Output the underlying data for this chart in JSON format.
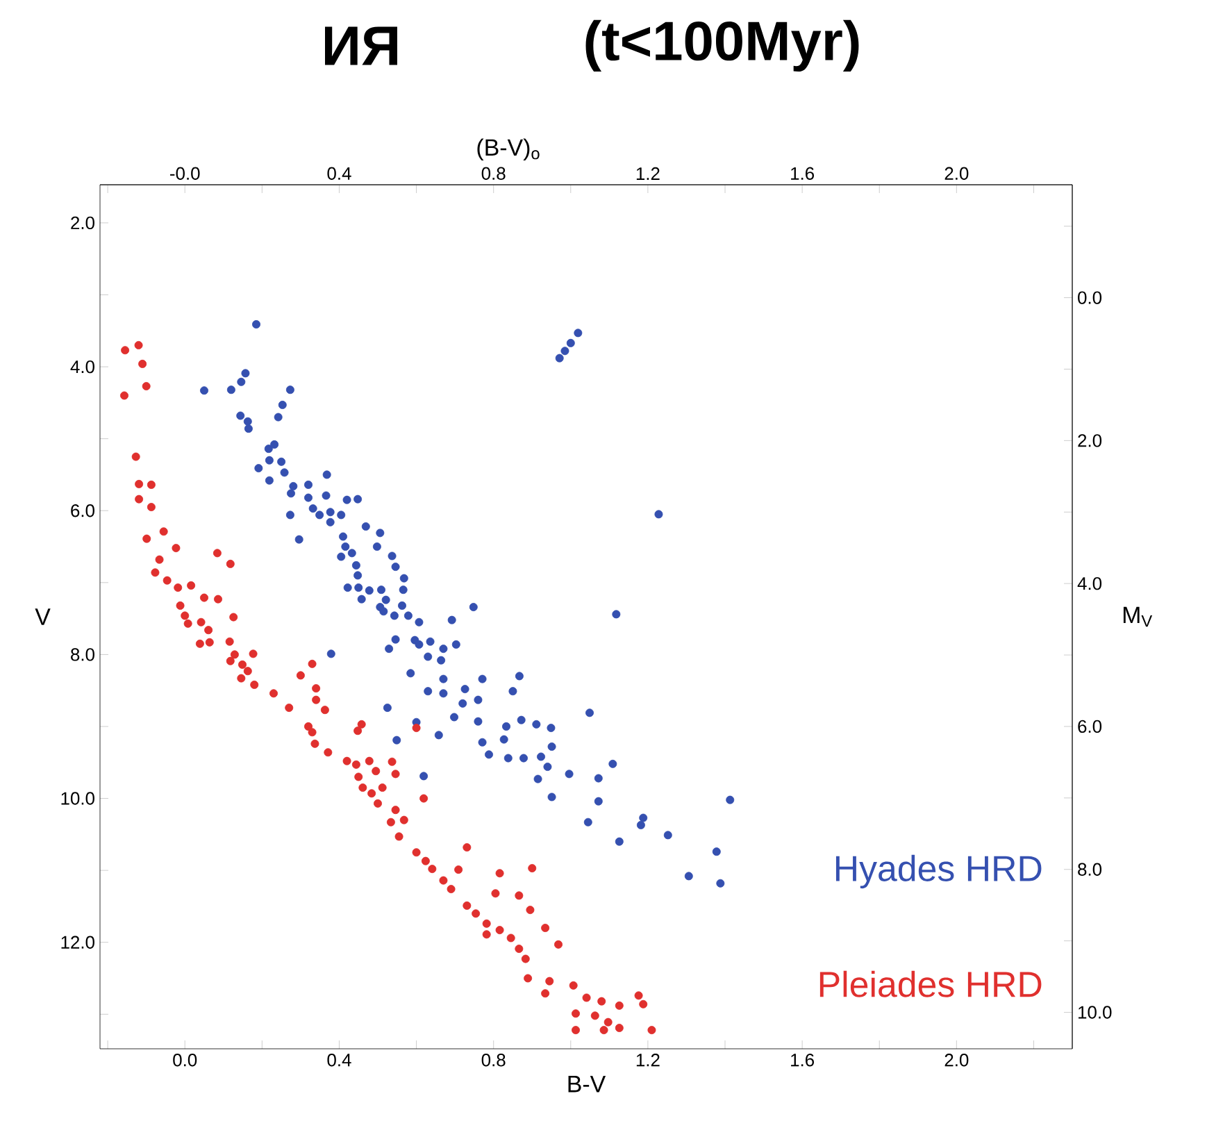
{
  "chart_data": {
    "type": "scatter",
    "title": "ИЯ",
    "subtitle": "(t<100Myr)",
    "xlabel": "B-V",
    "ylabel": "V",
    "x2label": "(B-V)$_{o}$",
    "y2label": "M$_{V}$",
    "marker": "circle",
    "xlim": [
      -0.22,
      2.3
    ],
    "ylim": [
      13.48,
      1.47
    ],
    "x2lim": [
      -0.22,
      2.3
    ],
    "y2lim": [
      10.51,
      -1.58
    ],
    "xticks": [
      {
        "value": -0.2,
        "label": null
      },
      {
        "value": 0,
        "label": "0.0"
      },
      {
        "value": 0.2,
        "label": null
      },
      {
        "value": 0.4,
        "label": "0.4"
      },
      {
        "value": 0.6,
        "label": null
      },
      {
        "value": 0.8,
        "label": "0.8"
      },
      {
        "value": 1.0,
        "label": null
      },
      {
        "value": 1.2,
        "label": "1.2"
      },
      {
        "value": 1.4,
        "label": null
      },
      {
        "value": 1.6,
        "label": "1.6"
      },
      {
        "value": 1.8,
        "label": null
      },
      {
        "value": 2.0,
        "label": "2.0"
      },
      {
        "value": 2.2,
        "label": null
      }
    ],
    "x2ticks": [
      {
        "value": -0.2,
        "label": null
      },
      {
        "value": 0,
        "label": "-0.0"
      },
      {
        "value": 0.2,
        "label": null
      },
      {
        "value": 0.4,
        "label": "0.4"
      },
      {
        "value": 0.6,
        "label": null
      },
      {
        "value": 0.8,
        "label": "0.8"
      },
      {
        "value": 1.0,
        "label": null
      },
      {
        "value": 1.2,
        "label": "1.2"
      },
      {
        "value": 1.4,
        "label": null
      },
      {
        "value": 1.6,
        "label": "1.6"
      },
      {
        "value": 1.8,
        "label": null
      },
      {
        "value": 2.0,
        "label": "2.0"
      },
      {
        "value": 2.2,
        "label": null
      }
    ],
    "yticks": [
      {
        "value": 2,
        "label": "2.0"
      },
      {
        "value": 3,
        "label": null
      },
      {
        "value": 4,
        "label": "4.0"
      },
      {
        "value": 5,
        "label": null
      },
      {
        "value": 6,
        "label": "6.0"
      },
      {
        "value": 7,
        "label": null
      },
      {
        "value": 8,
        "label": "8.0"
      },
      {
        "value": 9,
        "label": null
      },
      {
        "value": 10,
        "label": "10.0"
      },
      {
        "value": 11,
        "label": null
      },
      {
        "value": 12,
        "label": "12.0"
      },
      {
        "value": 13,
        "label": null
      }
    ],
    "y2ticks": [
      {
        "value": -1,
        "label": null
      },
      {
        "value": 0,
        "label": "0.0"
      },
      {
        "value": 1,
        "label": null
      },
      {
        "value": 2,
        "label": "2.0"
      },
      {
        "value": 3,
        "label": null
      },
      {
        "value": 4,
        "label": "4.0"
      },
      {
        "value": 5,
        "label": null
      },
      {
        "value": 6,
        "label": "6.0"
      },
      {
        "value": 7,
        "label": null
      },
      {
        "value": 8,
        "label": "8.0"
      },
      {
        "value": 9,
        "label": null
      },
      {
        "value": 10,
        "label": "10.0"
      }
    ],
    "series": [
      {
        "name": "Hyades HRD",
        "color": "#3550b0",
        "x": [
          0.185,
          1.019,
          1.0,
          0.985,
          0.971,
          0.05,
          0.12,
          0.146,
          0.157,
          0.273,
          0.253,
          0.242,
          0.144,
          0.163,
          0.165,
          0.217,
          0.232,
          0.219,
          0.25,
          0.191,
          0.258,
          0.219,
          0.368,
          0.281,
          0.275,
          0.32,
          0.366,
          0.32,
          0.332,
          0.349,
          0.377,
          0.405,
          0.377,
          0.273,
          0.42,
          0.448,
          0.296,
          0.41,
          0.416,
          0.469,
          0.506,
          0.498,
          0.433,
          0.444,
          0.405,
          0.537,
          0.546,
          0.448,
          0.422,
          0.45,
          0.478,
          0.458,
          0.509,
          0.521,
          0.568,
          0.566,
          0.506,
          0.515,
          0.543,
          0.563,
          0.579,
          0.607,
          0.692,
          0.748,
          0.546,
          0.529,
          0.596,
          0.607,
          0.636,
          0.63,
          0.664,
          0.67,
          0.703,
          0.585,
          0.67,
          0.63,
          0.67,
          0.771,
          0.726,
          0.76,
          0.72,
          0.85,
          0.867,
          1.049,
          0.525,
          0.698,
          0.76,
          0.833,
          0.872,
          0.911,
          0.949,
          0.379,
          1.118,
          0.771,
          0.788,
          0.827,
          0.838,
          0.878,
          0.923,
          0.951,
          0.94,
          0.915,
          0.996,
          0.951,
          1.072,
          1.109,
          1.072,
          1.045,
          1.188,
          1.182,
          1.252,
          1.126,
          1.413,
          0.549,
          0.658,
          0.619,
          0.6,
          1.378,
          1.388,
          1.306,
          1.228
        ],
        "values": [
          3.41,
          3.53,
          3.67,
          3.78,
          3.88,
          4.33,
          4.32,
          4.21,
          4.09,
          4.32,
          4.53,
          4.7,
          4.68,
          4.76,
          4.86,
          5.14,
          5.08,
          5.3,
          5.32,
          5.41,
          5.47,
          5.58,
          5.5,
          5.66,
          5.76,
          5.64,
          5.79,
          5.82,
          5.97,
          6.06,
          6.02,
          6.06,
          6.16,
          6.06,
          5.85,
          5.84,
          6.4,
          6.36,
          6.5,
          6.22,
          6.31,
          6.5,
          6.59,
          6.76,
          6.64,
          6.63,
          6.78,
          6.9,
          7.07,
          7.07,
          7.11,
          7.23,
          7.1,
          7.24,
          6.94,
          7.1,
          7.34,
          7.4,
          7.46,
          7.32,
          7.46,
          7.55,
          7.52,
          7.34,
          7.79,
          7.92,
          7.8,
          7.86,
          7.82,
          8.03,
          8.08,
          7.92,
          7.86,
          8.26,
          8.34,
          8.51,
          8.54,
          8.34,
          8.48,
          8.63,
          8.68,
          8.51,
          8.3,
          8.81,
          8.74,
          8.87,
          8.93,
          9.0,
          8.91,
          8.97,
          9.02,
          7.99,
          7.44,
          9.22,
          9.39,
          9.18,
          9.44,
          9.44,
          9.42,
          9.28,
          9.56,
          9.73,
          9.66,
          9.98,
          9.72,
          9.52,
          10.04,
          10.33,
          10.27,
          10.37,
          10.51,
          10.6,
          10.02,
          9.19,
          9.12,
          9.69,
          8.94,
          10.74,
          11.18,
          11.08,
          6.05
        ]
      },
      {
        "name": "Pleiades HRD",
        "color": "#e0302e",
        "x": [
          -0.155,
          -0.12,
          -0.11,
          -0.1,
          -0.157,
          -0.127,
          -0.119,
          -0.087,
          -0.119,
          -0.087,
          -0.055,
          -0.099,
          -0.023,
          -0.066,
          0.084,
          0.118,
          -0.077,
          -0.046,
          -0.018,
          0.016,
          -0.012,
          0.0,
          0.008,
          0.05,
          0.086,
          0.126,
          0.042,
          0.061,
          0.039,
          0.064,
          0.116,
          0.129,
          0.177,
          0.149,
          0.118,
          0.163,
          0.146,
          0.18,
          0.23,
          0.27,
          0.3,
          0.33,
          0.34,
          0.34,
          0.363,
          0.32,
          0.458,
          0.33,
          0.337,
          0.371,
          0.448,
          0.42,
          0.444,
          0.478,
          0.495,
          0.537,
          0.546,
          0.45,
          0.461,
          0.484,
          0.512,
          0.5,
          0.546,
          0.534,
          0.568,
          0.555,
          0.619,
          0.6,
          0.624,
          0.641,
          0.709,
          0.731,
          0.67,
          0.69,
          0.731,
          0.754,
          0.782,
          0.782,
          0.816,
          0.805,
          0.866,
          0.895,
          0.9,
          0.816,
          0.845,
          0.866,
          0.883,
          0.934,
          0.968,
          0.889,
          0.945,
          0.934,
          1.007,
          1.041,
          1.08,
          1.126,
          1.176,
          1.188,
          1.013,
          1.063,
          1.097,
          1.126,
          1.013,
          1.086,
          1.21,
          0.6
        ],
        "values": [
          3.77,
          3.7,
          3.96,
          4.27,
          4.4,
          5.25,
          5.63,
          5.64,
          5.84,
          5.95,
          6.29,
          6.39,
          6.52,
          6.68,
          6.59,
          6.74,
          6.86,
          6.97,
          7.07,
          7.04,
          7.32,
          7.46,
          7.57,
          7.21,
          7.23,
          7.48,
          7.55,
          7.66,
          7.85,
          7.83,
          7.82,
          8.0,
          7.99,
          8.14,
          8.09,
          8.23,
          8.33,
          8.42,
          8.54,
          8.74,
          8.29,
          8.13,
          8.47,
          8.63,
          8.77,
          9.0,
          8.97,
          9.08,
          9.24,
          9.36,
          9.06,
          9.48,
          9.53,
          9.48,
          9.62,
          9.49,
          9.66,
          9.7,
          9.85,
          9.93,
          9.85,
          10.07,
          10.16,
          10.33,
          10.3,
          10.53,
          10.0,
          10.75,
          10.87,
          10.98,
          10.99,
          10.68,
          11.14,
          11.26,
          11.49,
          11.6,
          11.74,
          11.89,
          11.04,
          11.32,
          11.35,
          11.55,
          10.97,
          11.83,
          11.94,
          12.09,
          12.23,
          11.8,
          12.03,
          12.5,
          12.54,
          12.71,
          12.6,
          12.77,
          12.82,
          12.88,
          12.74,
          12.86,
          12.99,
          13.02,
          13.11,
          13.19,
          13.22,
          13.22,
          13.22,
          9.02
        ]
      }
    ]
  }
}
